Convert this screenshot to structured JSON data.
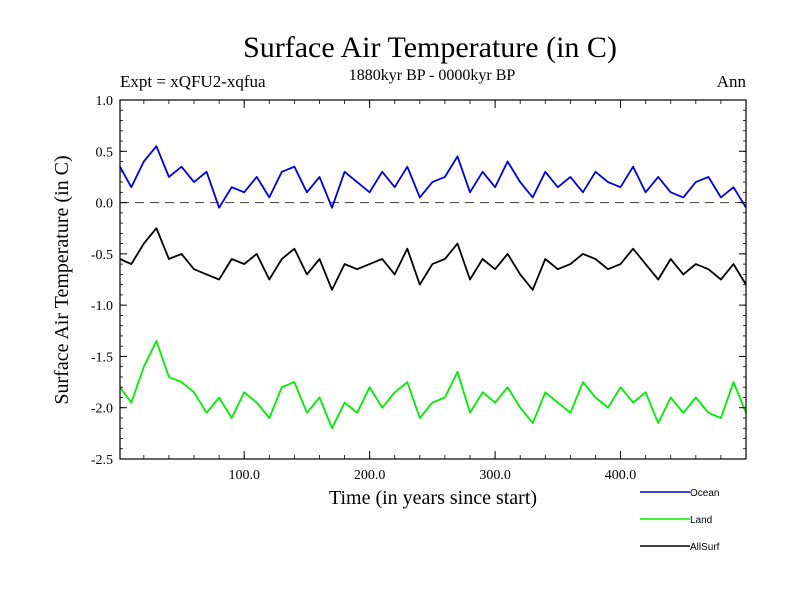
{
  "chart_data": {
    "type": "line",
    "title": "Surface Air Temperature (in C)",
    "subtitle": "1880kyr BP - 0000kyr BP",
    "experiment_label": "Expt = xQFU2-xqfua",
    "season_label": "Ann",
    "xlabel": "Time (in years since start)",
    "ylabel": "Surface Air Temperature (in C)",
    "xlim": [
      1,
      500
    ],
    "ylim": [
      -2.5,
      1.0
    ],
    "xticks": [
      {
        "value": 100,
        "label": "100.0"
      },
      {
        "value": 200,
        "label": "200.0"
      },
      {
        "value": 300,
        "label": "300.0"
      },
      {
        "value": 400,
        "label": "400.0"
      }
    ],
    "yticks": [
      {
        "value": 1.0,
        "label": "1.0"
      },
      {
        "value": 0.5,
        "label": "0.5"
      },
      {
        "value": 0.0,
        "label": "0.0"
      },
      {
        "value": -0.5,
        "label": "-0.5"
      },
      {
        "value": -1.0,
        "label": "-1.0"
      },
      {
        "value": -1.5,
        "label": "-1.5"
      },
      {
        "value": -2.0,
        "label": "-2.0"
      },
      {
        "value": -2.5,
        "label": "-2.5"
      }
    ],
    "reference_line": {
      "value": 0.0,
      "style": "dashed"
    },
    "legend_position": "bottom-right",
    "series": [
      {
        "name": "Ocean",
        "color": "#0000dd",
        "x": [
          1,
          10,
          20,
          30,
          40,
          50,
          60,
          70,
          80,
          90,
          100,
          110,
          120,
          130,
          140,
          150,
          160,
          170,
          180,
          190,
          200,
          210,
          220,
          230,
          240,
          250,
          260,
          270,
          280,
          290,
          300,
          310,
          320,
          330,
          340,
          350,
          360,
          370,
          380,
          390,
          400,
          410,
          420,
          430,
          440,
          450,
          460,
          470,
          480,
          490,
          500
        ],
        "values": [
          0.35,
          0.15,
          0.4,
          0.55,
          0.25,
          0.35,
          0.2,
          0.3,
          -0.05,
          0.15,
          0.1,
          0.25,
          0.05,
          0.3,
          0.35,
          0.1,
          0.25,
          -0.05,
          0.3,
          0.2,
          0.1,
          0.3,
          0.15,
          0.35,
          0.05,
          0.2,
          0.25,
          0.45,
          0.1,
          0.3,
          0.15,
          0.4,
          0.2,
          0.05,
          0.3,
          0.15,
          0.25,
          0.1,
          0.3,
          0.2,
          0.15,
          0.35,
          0.1,
          0.25,
          0.1,
          0.05,
          0.2,
          0.25,
          0.05,
          0.15,
          -0.05
        ]
      },
      {
        "name": "Land",
        "color": "#00ee00",
        "x": [
          1,
          10,
          20,
          30,
          40,
          50,
          60,
          70,
          80,
          90,
          100,
          110,
          120,
          130,
          140,
          150,
          160,
          170,
          180,
          190,
          200,
          210,
          220,
          230,
          240,
          250,
          260,
          270,
          280,
          290,
          300,
          310,
          320,
          330,
          340,
          350,
          360,
          370,
          380,
          390,
          400,
          410,
          420,
          430,
          440,
          450,
          460,
          470,
          480,
          490,
          500
        ],
        "values": [
          -1.8,
          -1.95,
          -1.6,
          -1.35,
          -1.7,
          -1.75,
          -1.85,
          -2.05,
          -1.9,
          -2.1,
          -1.85,
          -1.95,
          -2.1,
          -1.8,
          -1.75,
          -2.05,
          -1.9,
          -2.2,
          -1.95,
          -2.05,
          -1.8,
          -2.0,
          -1.85,
          -1.75,
          -2.1,
          -1.95,
          -1.9,
          -1.65,
          -2.05,
          -1.85,
          -1.95,
          -1.8,
          -2.0,
          -2.15,
          -1.85,
          -1.95,
          -2.05,
          -1.75,
          -1.9,
          -2.0,
          -1.8,
          -1.95,
          -1.85,
          -2.15,
          -1.9,
          -2.05,
          -1.9,
          -2.05,
          -2.1,
          -1.75,
          -2.05
        ]
      },
      {
        "name": "AllSurf",
        "color": "#000000",
        "x": [
          1,
          10,
          20,
          30,
          40,
          50,
          60,
          70,
          80,
          90,
          100,
          110,
          120,
          130,
          140,
          150,
          160,
          170,
          180,
          190,
          200,
          210,
          220,
          230,
          240,
          250,
          260,
          270,
          280,
          290,
          300,
          310,
          320,
          330,
          340,
          350,
          360,
          370,
          380,
          390,
          400,
          410,
          420,
          430,
          440,
          450,
          460,
          470,
          480,
          490,
          500
        ],
        "values": [
          -0.55,
          -0.6,
          -0.4,
          -0.25,
          -0.55,
          -0.5,
          -0.65,
          -0.7,
          -0.75,
          -0.55,
          -0.6,
          -0.5,
          -0.75,
          -0.55,
          -0.45,
          -0.7,
          -0.55,
          -0.85,
          -0.6,
          -0.65,
          -0.6,
          -0.55,
          -0.7,
          -0.45,
          -0.8,
          -0.6,
          -0.55,
          -0.4,
          -0.75,
          -0.55,
          -0.65,
          -0.5,
          -0.7,
          -0.85,
          -0.55,
          -0.65,
          -0.6,
          -0.5,
          -0.55,
          -0.65,
          -0.6,
          -0.45,
          -0.6,
          -0.75,
          -0.55,
          -0.7,
          -0.6,
          -0.65,
          -0.75,
          -0.6,
          -0.8
        ]
      }
    ]
  }
}
